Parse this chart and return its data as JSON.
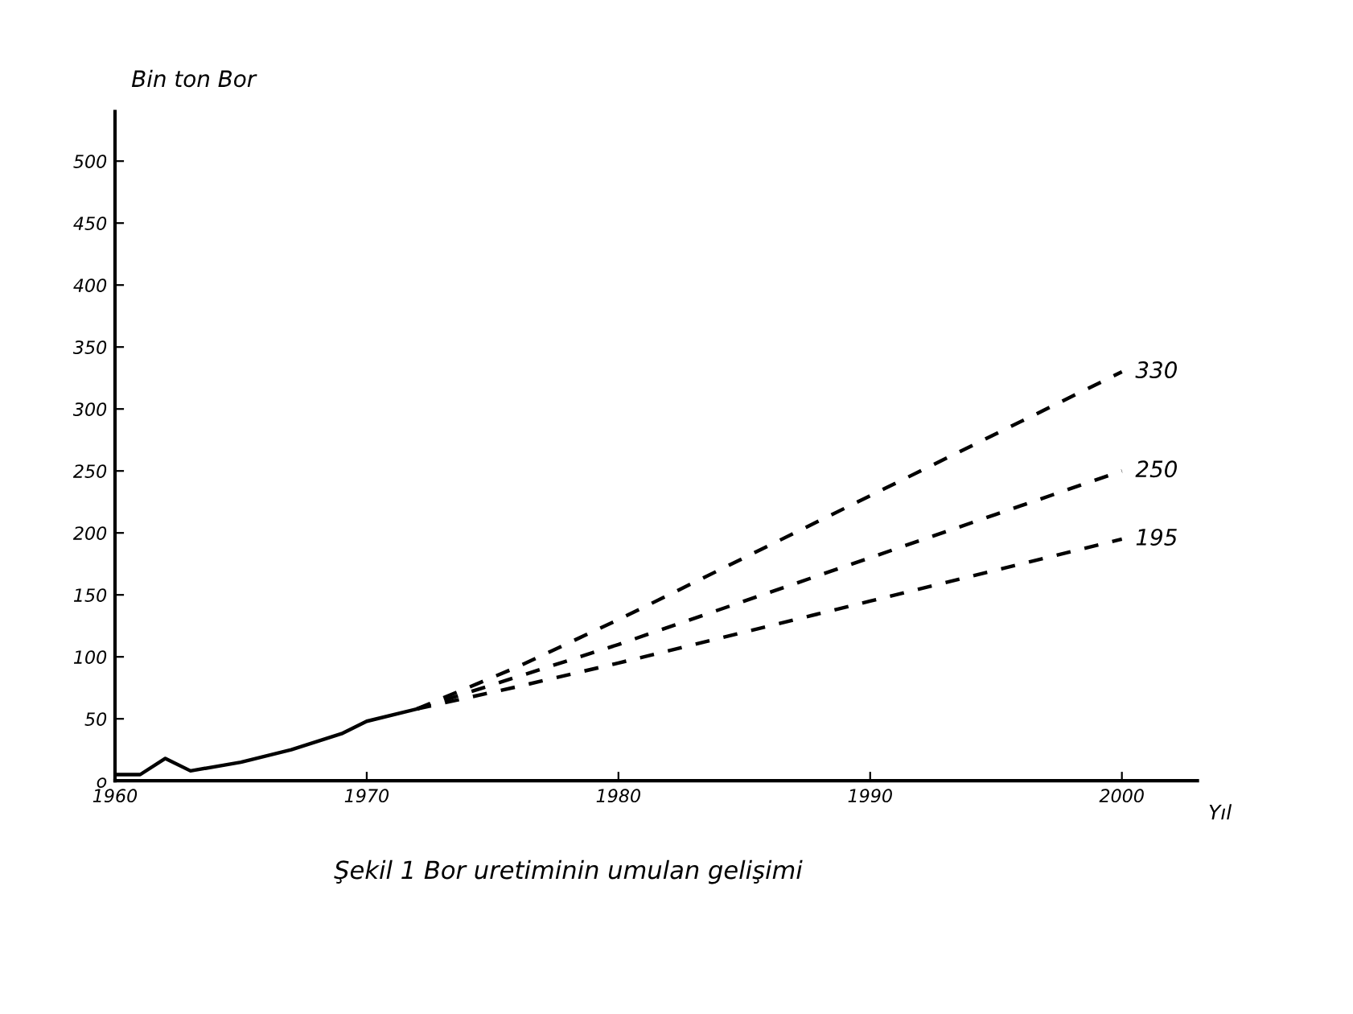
{
  "chart_data": {
    "type": "line",
    "xlabel": "Yıl",
    "ylabel": "Bin ton Bor",
    "title": "Şekil 1 Bor uretiminin umulan gelişimi",
    "xlim": [
      1960,
      2003
    ],
    "xticks": [
      1960,
      1970,
      1980,
      1990,
      2000
    ],
    "ylim": [
      0,
      540
    ],
    "yticks": [
      {
        "value": 0,
        "label": "o"
      },
      50,
      100,
      150,
      200,
      250,
      300,
      350,
      400,
      450,
      500
    ],
    "grid": false,
    "legend": false,
    "marker": "none",
    "series": [
      {
        "color": "#000000",
        "line_style": "solid",
        "x": [
          1960,
          1961,
          1962,
          1963,
          1965,
          1967,
          1969,
          1970,
          1972
        ],
        "values": [
          5,
          5,
          18,
          8,
          15,
          25,
          38,
          48,
          58
        ]
      },
      {
        "color": "#000000",
        "line_style": "dashed",
        "x": [
          1972,
          1976,
          1980,
          1985,
          1990,
          1995,
          2000
        ],
        "values": [
          58,
          92,
          130,
          180,
          230,
          280,
          330
        ],
        "value_labels": [
          null,
          null,
          null,
          null,
          null,
          null,
          "330"
        ]
      },
      {
        "color": "#000000",
        "line_style": "dashed",
        "x": [
          1972,
          1976,
          1980,
          1985,
          1990,
          1995,
          2000
        ],
        "values": [
          58,
          84,
          110,
          145,
          180,
          215,
          250
        ],
        "value_labels": [
          null,
          null,
          null,
          null,
          null,
          null,
          "250"
        ]
      },
      {
        "color": "#000000",
        "line_style": "dashed",
        "x": [
          1972,
          1976,
          1980,
          1985,
          1990,
          1995,
          2000
        ],
        "values": [
          58,
          76,
          95,
          120,
          145,
          170,
          195
        ],
        "value_labels": [
          null,
          null,
          null,
          null,
          null,
          null,
          "195"
        ]
      }
    ]
  }
}
